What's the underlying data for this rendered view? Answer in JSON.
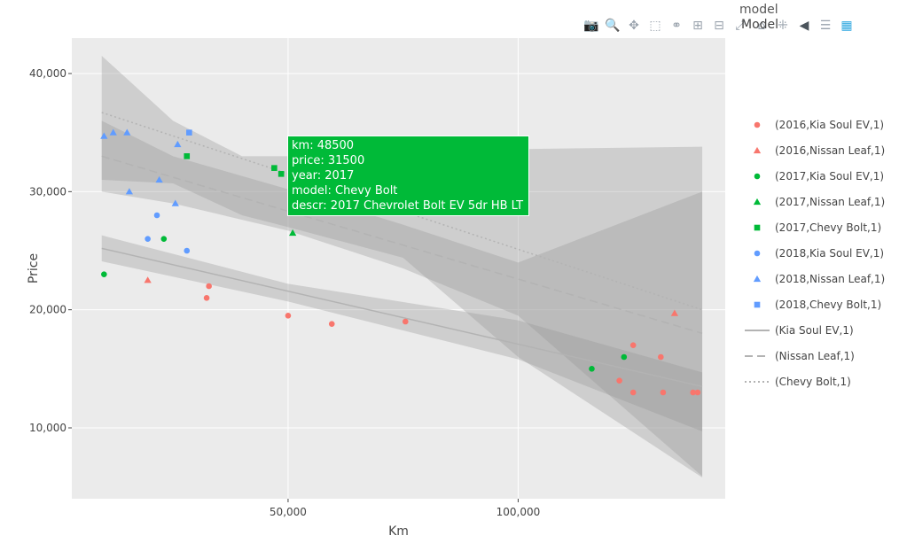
{
  "modebar": {
    "icons": [
      "camera-icon",
      "zoom-icon",
      "pan-icon",
      "box-select-icon",
      "lasso-icon",
      "zoom-in-icon",
      "zoom-out-icon",
      "autoscale-icon",
      "reset-axes-icon",
      "spike-lines-icon",
      "hover-closest-icon",
      "hover-compare-icon",
      "plotly-logo-icon"
    ]
  },
  "legend": {
    "title": "Model",
    "title_ghost": "model",
    "items": [
      {
        "label": "(2016,Kia Soul EV,1)",
        "symbol": "circle",
        "color": "#F8766D"
      },
      {
        "label": "(2016,Nissan Leaf,1)",
        "symbol": "triangle",
        "color": "#F8766D"
      },
      {
        "label": "(2017,Kia Soul EV,1)",
        "symbol": "circle",
        "color": "#00BA38"
      },
      {
        "label": "(2017,Nissan Leaf,1)",
        "symbol": "triangle",
        "color": "#00BA38"
      },
      {
        "label": "(2017,Chevy Bolt,1)",
        "symbol": "square",
        "color": "#00BA38"
      },
      {
        "label": "(2018,Kia Soul EV,1)",
        "symbol": "circle",
        "color": "#619CFF"
      },
      {
        "label": "(2018,Nissan Leaf,1)",
        "symbol": "triangle",
        "color": "#619CFF"
      },
      {
        "label": "(2018,Chevy Bolt,1)",
        "symbol": "square",
        "color": "#619CFF"
      },
      {
        "label": "(Kia Soul EV,1)",
        "symbol": "solid",
        "color": "#b3b3b3"
      },
      {
        "label": "(Nissan Leaf,1)",
        "symbol": "dash",
        "color": "#b3b3b3"
      },
      {
        "label": "(Chevy Bolt,1)",
        "symbol": "dot",
        "color": "#b3b3b3"
      }
    ]
  },
  "hover": {
    "lines": [
      "km: 48500",
      "price: 31500",
      "year: 2017",
      "model: Chevy Bolt",
      "descr: 2017 Chevrolet Bolt EV 5dr HB LT"
    ],
    "color": "#00BA38"
  },
  "chart_data": {
    "type": "scatter",
    "xlabel": "Km",
    "ylabel": "Price",
    "xlim": [
      3000,
      145000
    ],
    "ylim": [
      4000,
      43000
    ],
    "x_ticks": [
      50000,
      100000
    ],
    "x_tick_labels": [
      "50,000",
      "100,000"
    ],
    "y_ticks": [
      10000,
      20000,
      30000,
      40000
    ],
    "y_tick_labels": [
      "10,000",
      "20,000",
      "30,000",
      "40,000"
    ],
    "grid": true,
    "legend_position": "right",
    "panel_color": "#ebebeb",
    "series": [
      {
        "name": "(2016,Kia Soul EV,1)",
        "symbol": "circle",
        "color": "#F8766D",
        "points": [
          [
            32300,
            21000
          ],
          [
            32800,
            22000
          ],
          [
            50000,
            19500
          ],
          [
            59500,
            18800
          ],
          [
            75500,
            19000
          ],
          [
            125000,
            17000
          ],
          [
            131000,
            16000
          ],
          [
            122000,
            14000
          ],
          [
            125000,
            13000
          ],
          [
            131500,
            13000
          ],
          [
            138000,
            13000
          ],
          [
            139000,
            13000
          ]
        ]
      },
      {
        "name": "(2016,Nissan Leaf,1)",
        "symbol": "triangle",
        "color": "#F8766D",
        "points": [
          [
            19500,
            22500
          ],
          [
            134000,
            19700
          ]
        ]
      },
      {
        "name": "(2017,Kia Soul EV,1)",
        "symbol": "circle",
        "color": "#00BA38",
        "points": [
          [
            10000,
            23000
          ],
          [
            23000,
            26000
          ],
          [
            116000,
            15000
          ],
          [
            123000,
            16000
          ]
        ]
      },
      {
        "name": "(2017,Nissan Leaf,1)",
        "symbol": "triangle",
        "color": "#00BA38",
        "points": [
          [
            51000,
            26500
          ]
        ]
      },
      {
        "name": "(2017,Chevy Bolt,1)",
        "symbol": "square",
        "color": "#00BA38",
        "points": [
          [
            28000,
            33000
          ],
          [
            47000,
            32000
          ],
          [
            48500,
            31500
          ]
        ]
      },
      {
        "name": "(2018,Kia Soul EV,1)",
        "symbol": "circle",
        "color": "#619CFF",
        "points": [
          [
            19500,
            26000
          ],
          [
            21500,
            28000
          ],
          [
            28000,
            25000
          ]
        ]
      },
      {
        "name": "(2018,Nissan Leaf,1)",
        "symbol": "triangle",
        "color": "#619CFF",
        "points": [
          [
            10000,
            34700
          ],
          [
            12000,
            35000
          ],
          [
            15000,
            35000
          ],
          [
            15500,
            30000
          ],
          [
            22000,
            31000
          ],
          [
            25500,
            29000
          ],
          [
            26000,
            34000
          ]
        ]
      },
      {
        "name": "(2018,Chevy Bolt,1)",
        "symbol": "square",
        "color": "#619CFF",
        "points": [
          [
            28500,
            35000
          ]
        ]
      }
    ],
    "fits": [
      {
        "name": "(Kia Soul EV,1)",
        "dash": "solid",
        "x": [
          9500,
          140000
        ],
        "y": [
          25200,
          13500
        ],
        "band": {
          "x": [
            9500,
            50000,
            100000,
            140000
          ],
          "lower": [
            24100,
            20700,
            15800,
            9700
          ],
          "upper": [
            26300,
            22200,
            19100,
            14700
          ]
        }
      },
      {
        "name": "(Nissan Leaf,1)",
        "dash": "dash",
        "x": [
          9500,
          140000
        ],
        "y": [
          33000,
          18000
        ],
        "band": {
          "x": [
            9500,
            25000,
            50000,
            75000,
            100000,
            140000
          ],
          "lower": [
            30000,
            29000,
            26700,
            23500,
            19500,
            5900
          ],
          "upper": [
            36000,
            33000,
            30200,
            27200,
            24000,
            30000
          ]
        }
      },
      {
        "name": "(Chevy Bolt,1)",
        "dash": "dot",
        "x": [
          9500,
          140000
        ],
        "y": [
          36700,
          20000
        ],
        "band": {
          "x": [
            9500,
            25000,
            40000,
            50000,
            75000,
            100000,
            140000
          ],
          "lower": [
            31000,
            30700,
            28000,
            27000,
            24400,
            16000,
            5800
          ],
          "upper": [
            41500,
            36000,
            33000,
            33000,
            33300,
            33600,
            33800
          ]
        }
      }
    ]
  }
}
